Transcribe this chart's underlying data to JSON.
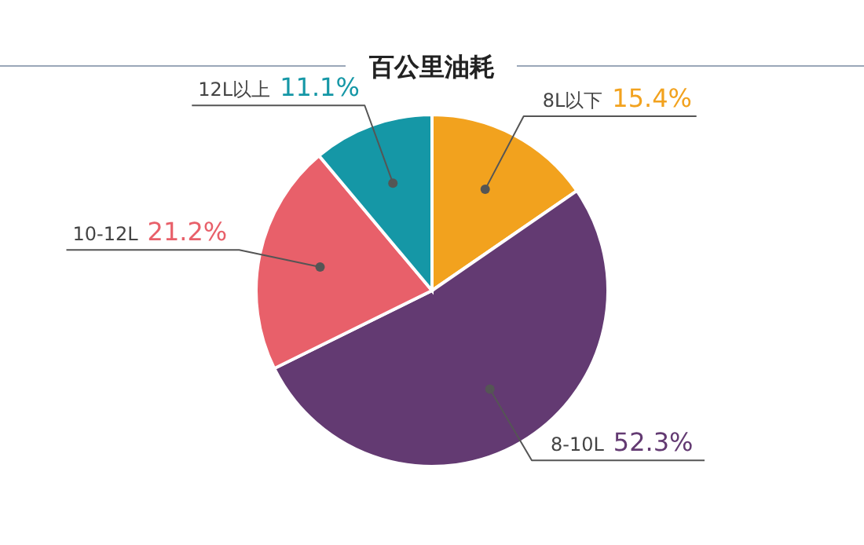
{
  "chart_data": {
    "type": "pie",
    "title": "百公里油耗",
    "categories": [
      "8L以下",
      "8-10L",
      "10-12L",
      "12L以上"
    ],
    "values": [
      15.4,
      52.3,
      21.2,
      11.1
    ],
    "value_labels": [
      "15.4%",
      "52.3%",
      "21.2%",
      "11.1%"
    ],
    "colors": [
      "#f2a21e",
      "#633a72",
      "#e8606a",
      "#1597a6"
    ]
  }
}
